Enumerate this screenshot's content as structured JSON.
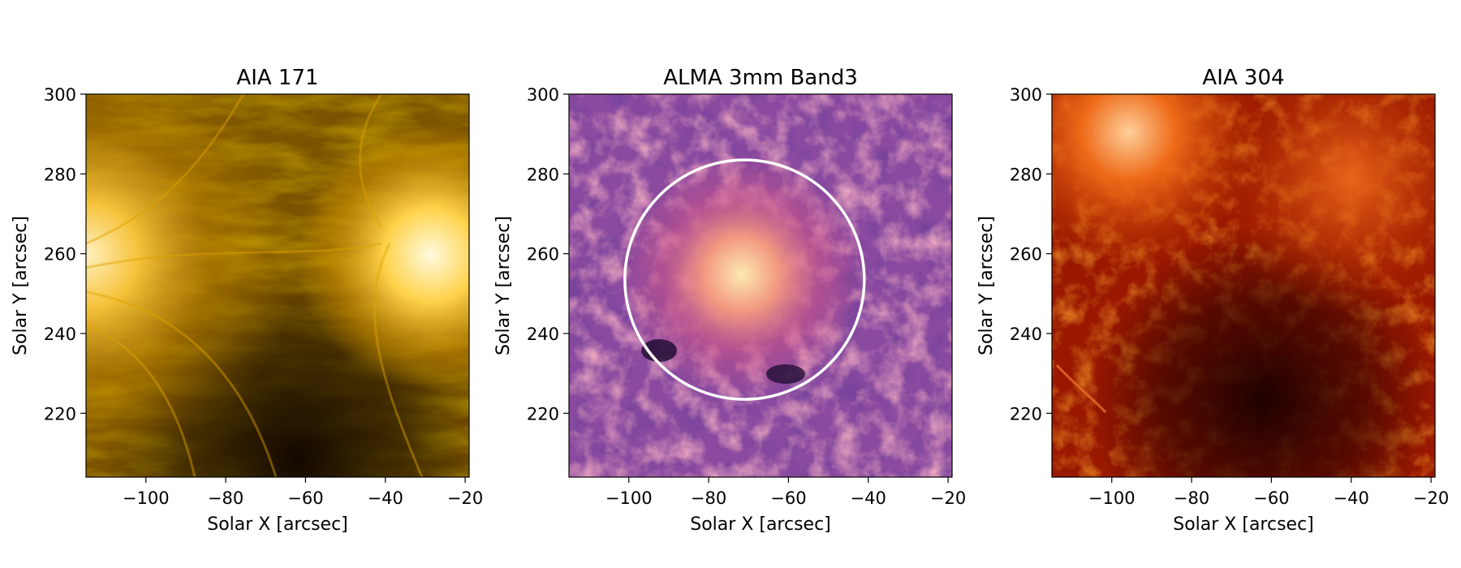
{
  "chart_data": [
    {
      "type": "heatmap",
      "title": "AIA 171",
      "xlabel": "Solar X [arcsec]",
      "ylabel": "Solar Y [arcsec]",
      "xlim": [
        -115,
        -19
      ],
      "ylim": [
        204,
        300
      ],
      "xticks": [
        -100,
        -80,
        -60,
        -40,
        -20
      ],
      "yticks": [
        220,
        240,
        260,
        280,
        300
      ],
      "xtick_labels": [
        "−100",
        "−80",
        "−60",
        "−40",
        "−20"
      ],
      "ytick_labels": [
        "220",
        "240",
        "260",
        "280",
        "300"
      ],
      "colormap": "sdoaia171",
      "colors": {
        "dark": "#2a1a00",
        "mid": "#8a5e00",
        "bright": "#e8a400",
        "highlight": "#fff2c0"
      }
    },
    {
      "type": "heatmap",
      "title": "ALMA 3mm Band3",
      "xlabel": "Solar X [arcsec]",
      "ylabel": "Solar Y [arcsec]",
      "xlim": [
        -115,
        -19
      ],
      "ylim": [
        204,
        300
      ],
      "xticks": [
        -100,
        -80,
        -60,
        -40,
        -20
      ],
      "yticks": [
        220,
        240,
        260,
        280,
        300
      ],
      "xtick_labels": [
        "−100",
        "−80",
        "−60",
        "−40",
        "−20"
      ],
      "ytick_labels": [
        "220",
        "240",
        "260",
        "280",
        "300"
      ],
      "colormap": "magma",
      "colors": {
        "dark": "#1b0a2e",
        "mid": "#7a3f9c",
        "bright": "#e36e78",
        "highlight": "#fde9b0"
      },
      "overlay_circle": {
        "center": [
          -71,
          253.5
        ],
        "radius": 30,
        "color": "#ffffff"
      }
    },
    {
      "type": "heatmap",
      "title": "AIA 304",
      "xlabel": "Solar X [arcsec]",
      "ylabel": "Solar Y [arcsec]",
      "xlim": [
        -115,
        -19
      ],
      "ylim": [
        204,
        300
      ],
      "xticks": [
        -100,
        -80,
        -60,
        -40,
        -20
      ],
      "yticks": [
        220,
        240,
        260,
        280,
        300
      ],
      "xtick_labels": [
        "−100",
        "−80",
        "−60",
        "−40",
        "−20"
      ],
      "ytick_labels": [
        "220",
        "240",
        "260",
        "280",
        "300"
      ],
      "colormap": "sdoaia304",
      "colors": {
        "dark": "#1e0000",
        "mid": "#8c0c00",
        "bright": "#d44400",
        "highlight": "#ffdcb0"
      }
    }
  ]
}
